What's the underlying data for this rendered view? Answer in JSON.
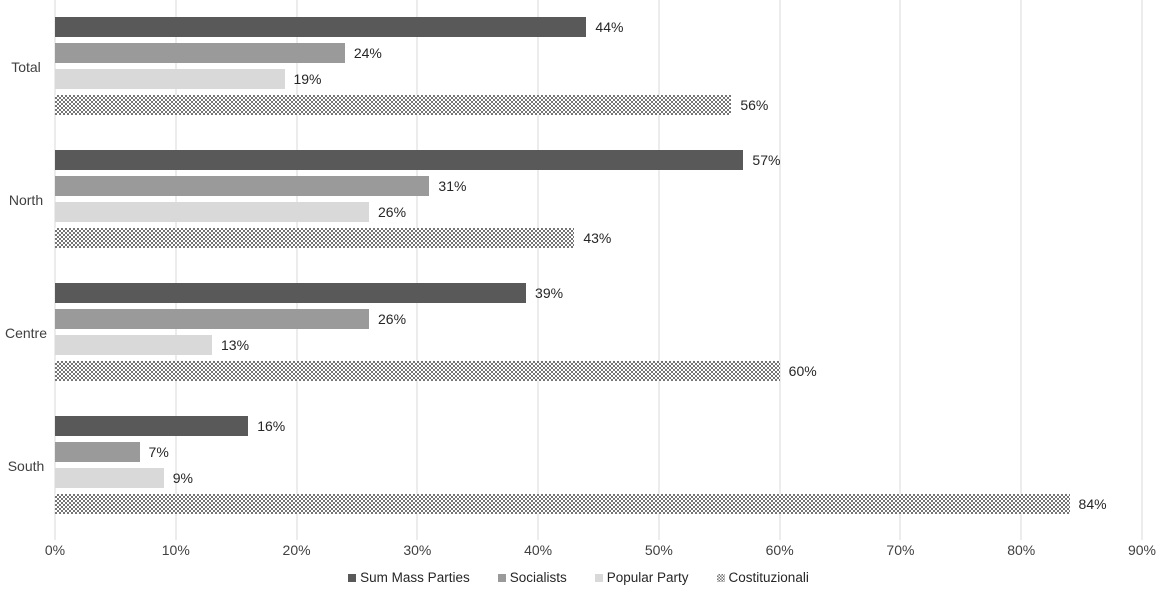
{
  "chart_data": {
    "type": "bar",
    "orientation": "horizontal",
    "title": "",
    "xlabel": "",
    "ylabel": "",
    "categories": [
      "Total",
      "North",
      "Centre",
      "South"
    ],
    "series": [
      {
        "name": "Sum Mass Parties",
        "color": "#595959",
        "fill": "solid",
        "values": [
          44,
          57,
          39,
          16
        ]
      },
      {
        "name": "Socialists",
        "color": "#9a9a9a",
        "fill": "solid",
        "values": [
          24,
          31,
          26,
          7
        ]
      },
      {
        "name": "Popular Party",
        "color": "#d9d9d9",
        "fill": "solid",
        "values": [
          19,
          26,
          13,
          9
        ]
      },
      {
        "name": "Costituzionali",
        "color": "#757575",
        "fill": "checker-pattern",
        "values": [
          56,
          43,
          60,
          84
        ]
      }
    ],
    "data_labels": [
      [
        "44%",
        "24%",
        "19%",
        "56%"
      ],
      [
        "57%",
        "31%",
        "26%",
        "43%"
      ],
      [
        "39%",
        "26%",
        "13%",
        "60%"
      ],
      [
        "16%",
        "7%",
        "9%",
        "84%"
      ]
    ],
    "x_axis": {
      "min": 0,
      "max": 90,
      "tick_step": 10,
      "ticks": [
        "0%",
        "10%",
        "20%",
        "30%",
        "40%",
        "50%",
        "60%",
        "70%",
        "80%",
        "90%"
      ]
    },
    "legend": {
      "position": "bottom",
      "entries": [
        "Sum Mass Parties",
        "Socialists",
        "Popular Party",
        "Costituzionali"
      ]
    },
    "grid": "vertical-on",
    "gridline_color": "#d9d9d9",
    "background_color": "#ffffff",
    "text_color": "#404040"
  }
}
